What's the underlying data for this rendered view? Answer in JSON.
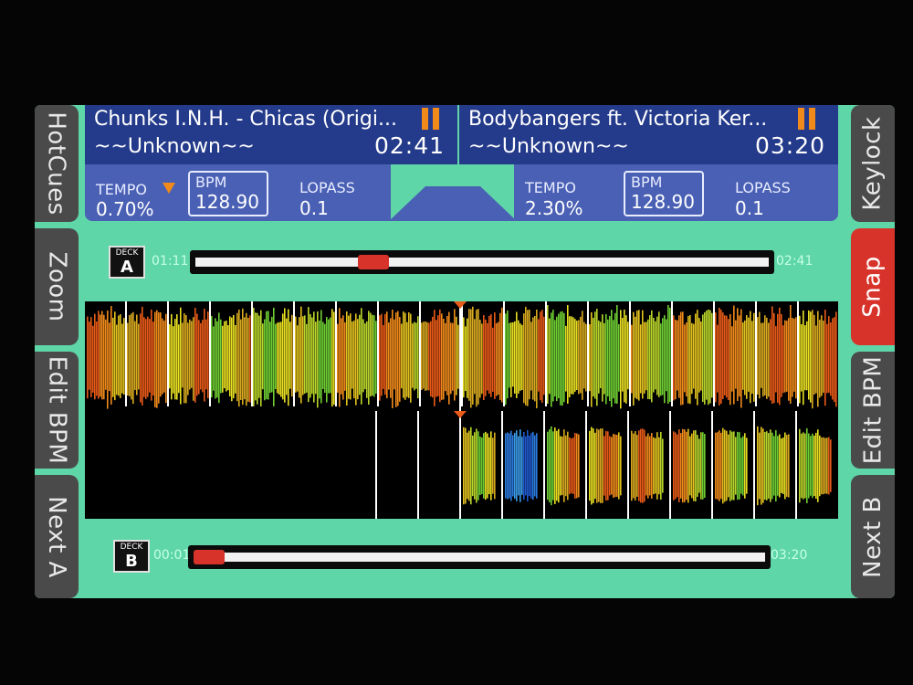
{
  "side_left": [
    {
      "label": "HotCues"
    },
    {
      "label": "Zoom"
    },
    {
      "label": "Edit BPM"
    },
    {
      "label": "Next A"
    }
  ],
  "side_right": [
    {
      "label": "Keylock",
      "active": false
    },
    {
      "label": "Snap",
      "active": true
    },
    {
      "label": "Edit BPM",
      "active": false
    },
    {
      "label": "Next B",
      "active": false
    }
  ],
  "deck_a": {
    "title": "Chunks I.N.H. - Chicas (Origi...",
    "artist": "~~Unknown~~",
    "remaining": "02:41",
    "tempo_label": "TEMPO",
    "tempo": "0.70%",
    "bpm_label": "BPM",
    "bpm": "128.90",
    "lopass_label": "LOPASS",
    "lopass": "0.1",
    "badge_label": "DECK",
    "badge_letter": "A",
    "elapsed": "01:11",
    "end_time": "02:41",
    "progress": 0.3
  },
  "deck_b": {
    "title": "Bodybangers ft. Victoria Ker...",
    "artist": "~~Unknown~~",
    "remaining": "03:20",
    "tempo_label": "TEMPO",
    "tempo": "2.30%",
    "bpm_label": "BPM",
    "bpm": "128.90",
    "lopass_label": "LOPASS",
    "lopass": "0.1",
    "badge_label": "DECK",
    "badge_letter": "B",
    "elapsed": "00:01",
    "end_time": "03:20",
    "progress": 0.0
  },
  "colors": {
    "screen_bg": "#5fd6a8",
    "header_dark": "#243a8a",
    "header_light": "#4a60b4",
    "accent_orange": "#f08a1a",
    "active_red": "#d8332a"
  }
}
